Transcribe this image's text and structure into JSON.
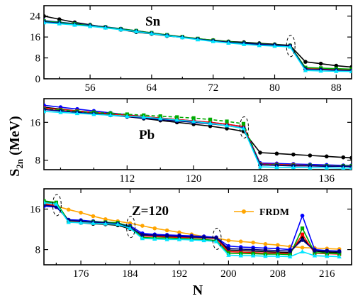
{
  "chart_data": [
    {
      "type": "line",
      "title": "Sn",
      "xlim": [
        50,
        90
      ],
      "ylim": [
        0,
        28
      ],
      "xticks": [
        56,
        64,
        72,
        80,
        88
      ],
      "yticks": [
        0,
        8,
        16,
        24
      ],
      "closures": [
        82
      ],
      "series": [
        {
          "color": "#000000",
          "style": "solid",
          "marker": "circle",
          "x": [
            50,
            52,
            54,
            56,
            58,
            60,
            62,
            64,
            66,
            68,
            70,
            72,
            74,
            76,
            78,
            80,
            82,
            84,
            86,
            88,
            90
          ],
          "y": [
            24.0,
            22.8,
            21.6,
            20.7,
            19.7,
            18.8,
            17.9,
            17.2,
            16.4,
            15.9,
            15.3,
            14.8,
            14.3,
            14.0,
            13.6,
            13.2,
            12.8,
            6.5,
            5.8,
            5.0,
            4.5
          ]
        },
        {
          "color": "#0000ff",
          "style": "solid",
          "marker": "circle",
          "x": [
            50,
            52,
            54,
            56,
            58,
            60,
            62,
            64,
            66,
            68,
            70,
            72,
            74,
            76,
            78,
            80,
            82,
            84,
            86,
            88,
            90
          ],
          "y": [
            22.3,
            21.7,
            21.1,
            20.5,
            19.9,
            19.2,
            18.4,
            17.6,
            16.8,
            16.0,
            15.3,
            14.6,
            14.0,
            13.5,
            13.1,
            12.8,
            12.5,
            3.8,
            3.6,
            3.4,
            3.2
          ]
        },
        {
          "color": "#ff0000",
          "style": "solid",
          "marker": "square",
          "x": [
            50,
            52,
            54,
            56,
            58,
            60,
            62,
            64,
            66,
            68,
            70,
            72,
            74,
            76,
            78,
            80,
            82,
            84,
            86,
            88,
            90
          ],
          "y": [
            22.0,
            21.5,
            20.9,
            20.3,
            19.7,
            19.0,
            18.3,
            17.5,
            16.7,
            16.0,
            15.3,
            14.6,
            14.1,
            13.6,
            13.2,
            12.9,
            12.6,
            3.9,
            3.7,
            3.5,
            3.3
          ]
        },
        {
          "color": "#00aa00",
          "style": "solid",
          "marker": "square",
          "x": [
            50,
            52,
            54,
            56,
            58,
            60,
            62,
            64,
            66,
            68,
            70,
            72,
            74,
            76,
            78,
            80,
            82,
            84,
            86,
            88,
            90
          ],
          "y": [
            22.1,
            21.6,
            21.0,
            20.4,
            19.8,
            19.1,
            18.4,
            17.6,
            16.8,
            16.1,
            15.4,
            14.7,
            14.2,
            13.7,
            13.3,
            13.0,
            12.7,
            4.3,
            4.1,
            3.9,
            3.7
          ]
        },
        {
          "color": "#000080",
          "style": "solid",
          "marker": "circle",
          "x": [
            50,
            52,
            54,
            56,
            58,
            60,
            62,
            64,
            66,
            68,
            70,
            72,
            74,
            76,
            78,
            80,
            82,
            84,
            86,
            88,
            90
          ],
          "y": [
            21.8,
            21.3,
            20.7,
            20.2,
            19.6,
            18.9,
            18.2,
            17.4,
            16.6,
            15.9,
            15.2,
            14.5,
            14.0,
            13.6,
            13.2,
            12.9,
            12.6,
            3.7,
            3.5,
            3.3,
            3.1
          ]
        },
        {
          "color": "#00e5ff",
          "style": "solid",
          "marker": "triangle",
          "x": [
            50,
            52,
            54,
            56,
            58,
            60,
            62,
            64,
            66,
            68,
            70,
            72,
            74,
            76,
            78,
            80,
            82,
            84,
            86,
            88,
            90
          ],
          "y": [
            21.5,
            21.1,
            20.6,
            20.1,
            19.5,
            18.8,
            18.1,
            17.3,
            16.5,
            15.8,
            15.0,
            14.3,
            13.7,
            13.2,
            12.8,
            12.5,
            12.2,
            3.2,
            3.0,
            2.9,
            2.8
          ]
        }
      ]
    },
    {
      "type": "line",
      "title": "Pb",
      "xlim": [
        102,
        139
      ],
      "ylim": [
        6,
        21
      ],
      "xticks": [
        112,
        120,
        128,
        136
      ],
      "yticks": [
        8,
        16
      ],
      "closures": [
        126
      ],
      "series": [
        {
          "color": "#000000",
          "style": "solid",
          "marker": "circle",
          "x": [
            102,
            104,
            106,
            108,
            110,
            112,
            114,
            116,
            118,
            120,
            122,
            124,
            126,
            128,
            130,
            132,
            134,
            136,
            138,
            139
          ],
          "y": [
            19.2,
            18.8,
            18.4,
            18.0,
            17.6,
            17.2,
            16.8,
            16.4,
            16.0,
            15.6,
            15.2,
            14.7,
            14.1,
            9.6,
            9.4,
            9.2,
            9.0,
            8.8,
            8.6,
            8.5
          ]
        },
        {
          "color": "#0000ff",
          "style": "solid",
          "marker": "circle",
          "x": [
            102,
            104,
            106,
            108,
            110,
            112,
            114,
            116,
            118,
            120,
            122,
            124,
            126,
            128,
            130,
            132,
            134,
            136,
            138,
            139
          ],
          "y": [
            19.6,
            19.2,
            18.8,
            18.4,
            18.0,
            17.6,
            17.2,
            16.9,
            16.6,
            16.3,
            16.0,
            15.6,
            15.1,
            7.4,
            7.3,
            7.2,
            7.1,
            7.0,
            6.9,
            6.9
          ]
        },
        {
          "color": "#ff0000",
          "style": "solid",
          "marker": "square",
          "x": [
            102,
            104,
            106,
            108,
            110,
            112,
            114,
            116,
            118,
            120,
            122,
            124,
            126,
            128,
            130,
            132,
            134,
            136,
            138,
            139
          ],
          "y": [
            19.0,
            18.7,
            18.4,
            18.1,
            17.8,
            17.5,
            17.2,
            16.9,
            16.6,
            16.3,
            16.0,
            15.6,
            15.1,
            7.2,
            7.1,
            7.0,
            6.9,
            6.8,
            6.7,
            6.7
          ]
        },
        {
          "color": "#00aa00",
          "style": "dashed",
          "marker": "square",
          "x": [
            102,
            104,
            106,
            108,
            110,
            112,
            114,
            116,
            118,
            120,
            122,
            124,
            126,
            128,
            130,
            132,
            134,
            136,
            138,
            139
          ],
          "y": [
            18.8,
            18.6,
            18.3,
            18.1,
            17.9,
            17.7,
            17.5,
            17.3,
            17.1,
            16.9,
            16.6,
            16.2,
            15.7,
            7.1,
            7.0,
            6.9,
            6.9,
            6.8,
            6.8,
            6.8
          ]
        },
        {
          "color": "#000080",
          "style": "solid",
          "marker": "circle",
          "x": [
            102,
            104,
            106,
            108,
            110,
            112,
            114,
            116,
            118,
            120,
            122,
            124,
            126,
            128,
            130,
            132,
            134,
            136,
            138,
            139
          ],
          "y": [
            18.7,
            18.4,
            18.1,
            17.8,
            17.5,
            17.2,
            16.9,
            16.6,
            16.3,
            16.0,
            15.7,
            15.3,
            14.8,
            7.0,
            6.9,
            6.8,
            6.8,
            6.7,
            6.7,
            6.6
          ]
        },
        {
          "color": "#00e5ff",
          "style": "solid",
          "marker": "triangle",
          "x": [
            102,
            104,
            106,
            108,
            110,
            112,
            114,
            116,
            118,
            120,
            122,
            124,
            126,
            128,
            130,
            132,
            134,
            136,
            138,
            139
          ],
          "y": [
            18.3,
            18.1,
            17.9,
            17.7,
            17.5,
            17.3,
            17.1,
            16.8,
            16.5,
            16.2,
            15.8,
            15.3,
            14.7,
            6.6,
            6.5,
            6.5,
            6.4,
            6.4,
            6.3,
            6.3
          ]
        }
      ]
    },
    {
      "type": "line",
      "title": "Z=120",
      "xlabel": "N",
      "xlim": [
        170,
        220
      ],
      "ylim": [
        5,
        20
      ],
      "xticks": [
        176,
        184,
        192,
        200,
        208,
        216
      ],
      "yticks": [
        8,
        16
      ],
      "closures": [
        172,
        184,
        198
      ],
      "legend": [
        {
          "label": "FRDM",
          "color": "#ffa500",
          "marker": "circle"
        }
      ],
      "series": [
        {
          "name": "FRDM",
          "color": "#ffa500",
          "style": "solid",
          "marker": "circle",
          "x": [
            170,
            172,
            174,
            176,
            178,
            180,
            182,
            184,
            186,
            188,
            190,
            192,
            194,
            196,
            198,
            200,
            202,
            204,
            206,
            208,
            210,
            212,
            214,
            216,
            218
          ],
          "y": [
            17.2,
            16.6,
            15.9,
            15.3,
            14.6,
            14.0,
            13.6,
            13.2,
            12.7,
            12.2,
            11.8,
            11.4,
            11.0,
            10.6,
            10.3,
            9.8,
            9.6,
            9.4,
            9.1,
            8.9,
            8.6,
            8.4,
            8.3,
            8.2,
            8.1
          ]
        },
        {
          "color": "#000000",
          "style": "solid",
          "marker": "circle",
          "x": [
            170,
            172,
            174,
            176,
            178,
            180,
            182,
            184,
            186,
            188,
            190,
            192,
            194,
            196,
            198,
            200,
            202,
            204,
            206,
            208,
            210,
            212,
            214,
            216,
            218
          ],
          "y": [
            17.5,
            17.0,
            13.5,
            13.3,
            13.1,
            13.0,
            12.8,
            12.1,
            11.0,
            10.8,
            10.7,
            10.6,
            10.6,
            10.5,
            10.4,
            7.9,
            7.8,
            7.7,
            7.6,
            7.5,
            7.4,
            10.3,
            7.7,
            7.5,
            7.4
          ]
        },
        {
          "color": "#0000ff",
          "style": "solid",
          "marker": "circle",
          "x": [
            170,
            172,
            174,
            176,
            178,
            180,
            182,
            184,
            186,
            188,
            190,
            192,
            194,
            196,
            198,
            200,
            202,
            204,
            206,
            208,
            210,
            212,
            214,
            216,
            218
          ],
          "y": [
            16.6,
            16.4,
            13.9,
            13.8,
            13.6,
            13.4,
            13.2,
            12.7,
            11.2,
            11.0,
            10.9,
            10.8,
            10.7,
            10.6,
            10.4,
            8.7,
            8.5,
            8.4,
            8.3,
            8.2,
            8.0,
            14.7,
            8.0,
            7.8,
            7.7
          ]
        },
        {
          "color": "#ff0000",
          "style": "solid",
          "marker": "square",
          "x": [
            170,
            172,
            174,
            176,
            178,
            180,
            182,
            184,
            186,
            188,
            190,
            192,
            194,
            196,
            198,
            200,
            202,
            204,
            206,
            208,
            210,
            212,
            214,
            216,
            218
          ],
          "y": [
            17.0,
            16.7,
            13.6,
            13.4,
            13.3,
            13.1,
            13.0,
            12.3,
            10.7,
            10.6,
            10.5,
            10.4,
            10.4,
            10.3,
            10.2,
            7.6,
            7.5,
            7.4,
            7.3,
            7.3,
            7.2,
            11.0,
            7.3,
            7.2,
            7.1
          ]
        },
        {
          "color": "#00aa00",
          "style": "solid",
          "marker": "square",
          "x": [
            170,
            172,
            174,
            176,
            178,
            180,
            182,
            184,
            186,
            188,
            190,
            192,
            194,
            196,
            198,
            200,
            202,
            204,
            206,
            208,
            210,
            212,
            214,
            216,
            218
          ],
          "y": [
            17.6,
            17.3,
            13.7,
            13.6,
            13.5,
            13.4,
            13.3,
            12.5,
            10.4,
            10.3,
            10.3,
            10.2,
            10.1,
            10.0,
            9.8,
            7.3,
            7.2,
            7.2,
            7.1,
            7.1,
            7.0,
            12.2,
            7.4,
            7.3,
            7.2
          ]
        },
        {
          "color": "#000080",
          "style": "solid",
          "marker": "circle",
          "x": [
            170,
            172,
            174,
            176,
            178,
            180,
            182,
            184,
            186,
            188,
            190,
            192,
            194,
            196,
            198,
            200,
            202,
            204,
            206,
            208,
            210,
            212,
            214,
            216,
            218
          ],
          "y": [
            16.8,
            16.5,
            13.8,
            13.6,
            13.4,
            13.3,
            13.1,
            12.4,
            10.9,
            10.8,
            10.7,
            10.6,
            10.5,
            10.4,
            10.3,
            8.2,
            8.1,
            8.0,
            7.9,
            7.8,
            7.7,
            9.9,
            7.8,
            7.7,
            7.6
          ]
        },
        {
          "color": "#00e5ff",
          "style": "solid",
          "marker": "triangle",
          "x": [
            170,
            172,
            174,
            176,
            178,
            180,
            182,
            184,
            186,
            188,
            190,
            192,
            194,
            196,
            198,
            200,
            202,
            204,
            206,
            208,
            210,
            212,
            214,
            216,
            218
          ],
          "y": [
            17.3,
            17.0,
            13.4,
            13.3,
            13.2,
            13.1,
            13.0,
            12.2,
            10.2,
            10.1,
            10.0,
            10.0,
            9.9,
            9.8,
            9.6,
            6.9,
            6.8,
            6.8,
            6.7,
            6.7,
            6.6,
            7.6,
            6.8,
            6.7,
            6.6
          ]
        }
      ]
    }
  ],
  "ylabel_main": "S",
  "ylabel_sub": "2n",
  "ylabel_unit": " (MeV)"
}
